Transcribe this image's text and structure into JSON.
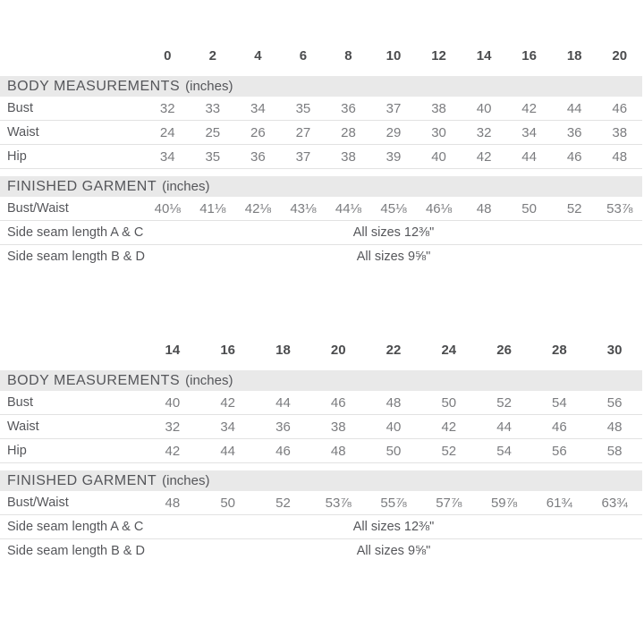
{
  "colors": {
    "section_bar_bg": "#e9e9e9",
    "heading_text": "#55565a",
    "label_text": "#55565a",
    "value_text": "#7b7c7f",
    "size_header_text": "#4b4c4e",
    "row_border": "#e2e2e2"
  },
  "tables": [
    {
      "name": "misses-sizes",
      "sizes": [
        "0",
        "2",
        "4",
        "6",
        "8",
        "10",
        "12",
        "14",
        "16",
        "18",
        "20"
      ],
      "sections": [
        {
          "title": "BODY MEASUREMENTS",
          "suffix": "(inches)",
          "rows": [
            {
              "label": "Bust",
              "values": [
                "32",
                "33",
                "34",
                "35",
                "36",
                "37",
                "38",
                "40",
                "42",
                "44",
                "46"
              ]
            },
            {
              "label": "Waist",
              "values": [
                "24",
                "25",
                "26",
                "27",
                "28",
                "29",
                "30",
                "32",
                "34",
                "36",
                "38"
              ]
            },
            {
              "label": "Hip",
              "values": [
                "34",
                "35",
                "36",
                "37",
                "38",
                "39",
                "40",
                "42",
                "44",
                "46",
                "48"
              ]
            }
          ]
        },
        {
          "title": "FINISHED GARMENT",
          "suffix": "(inches)",
          "rows": [
            {
              "label": "Bust/Waist",
              "values": [
                "40⅛",
                "41⅛",
                "42⅛",
                "43⅛",
                "44⅛",
                "45⅛",
                "46⅛",
                "48",
                "50",
                "52",
                "53⅞"
              ]
            },
            {
              "label": "Side seam length A & C",
              "span_value": "All sizes 12⅜\""
            },
            {
              "label": "Side seam length B & D",
              "span_value": "All sizes 9⅝\""
            }
          ]
        }
      ]
    },
    {
      "name": "plus-sizes",
      "sizes": [
        "14",
        "16",
        "18",
        "20",
        "22",
        "24",
        "26",
        "28",
        "30"
      ],
      "sections": [
        {
          "title": "BODY MEASUREMENTS",
          "suffix": "(inches)",
          "rows": [
            {
              "label": "Bust",
              "values": [
                "40",
                "42",
                "44",
                "46",
                "48",
                "50",
                "52",
                "54",
                "56"
              ]
            },
            {
              "label": "Waist",
              "values": [
                "32",
                "34",
                "36",
                "38",
                "40",
                "42",
                "44",
                "46",
                "48"
              ]
            },
            {
              "label": "Hip",
              "values": [
                "42",
                "44",
                "46",
                "48",
                "50",
                "52",
                "54",
                "56",
                "58"
              ]
            }
          ]
        },
        {
          "title": "FINISHED GARMENT",
          "suffix": "(inches)",
          "rows": [
            {
              "label": "Bust/Waist",
              "values": [
                "48",
                "50",
                "52",
                "53⅞",
                "55⅞",
                "57⅞",
                "59⅞",
                "61¾",
                "63¾"
              ]
            },
            {
              "label": "Side seam length A & C",
              "span_value": "All sizes 12⅜\""
            },
            {
              "label": "Side seam length B & D",
              "span_value": "All sizes 9⅝\""
            }
          ]
        }
      ]
    }
  ]
}
